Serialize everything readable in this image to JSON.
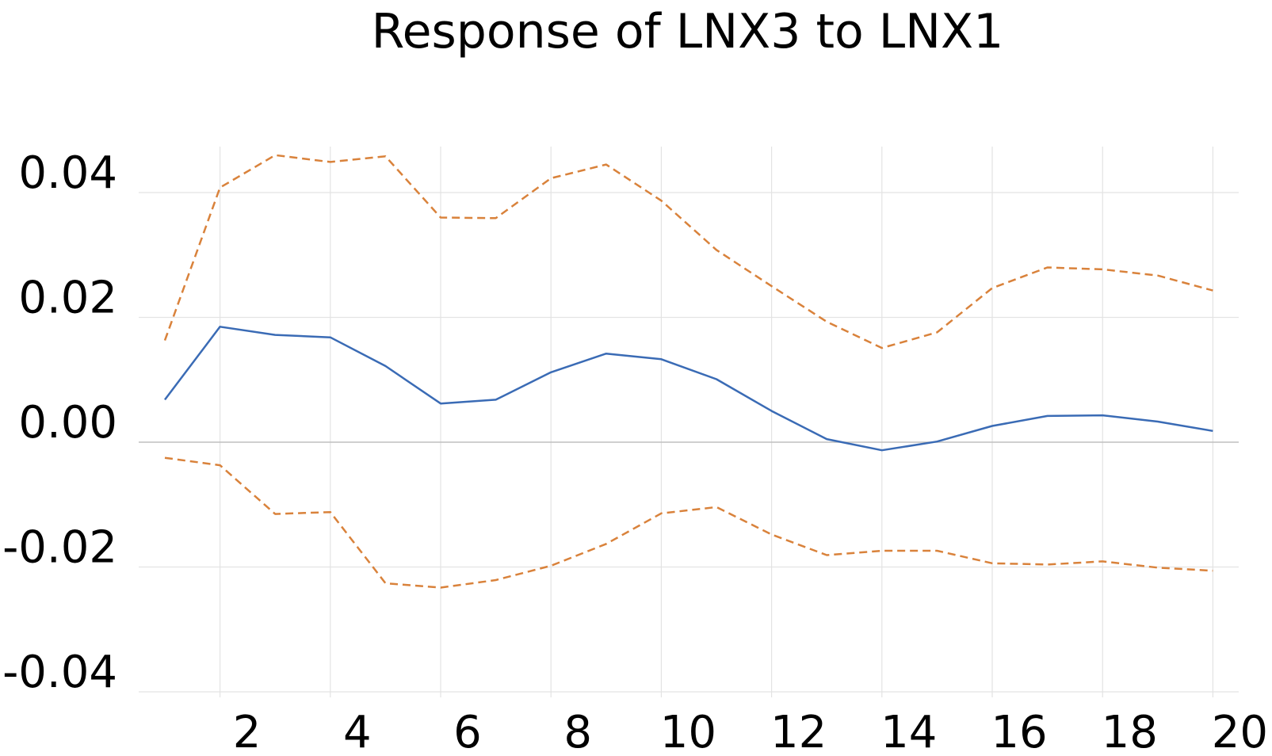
{
  "chart_data": {
    "type": "line",
    "title": "Response of LNX3 to LNX1",
    "x": [
      1,
      2,
      3,
      4,
      5,
      6,
      7,
      8,
      9,
      10,
      11,
      12,
      13,
      14,
      15,
      16,
      17,
      18,
      19,
      20
    ],
    "xticks": [
      2,
      4,
      6,
      8,
      10,
      12,
      14,
      16,
      18,
      20
    ],
    "yticks": [
      "0.04",
      "0.02",
      "0.00",
      "-0.02",
      "-0.04"
    ],
    "yticks_values": [
      0.04,
      0.02,
      0.0,
      -0.02,
      -0.04
    ],
    "ylim": [
      -0.04,
      0.045
    ],
    "xlim": [
      0,
      20.5
    ],
    "grid": true,
    "legend": "none",
    "series": [
      {
        "role": "response",
        "color": "#3a6bb5",
        "style": "solid",
        "values": [
          0.0068,
          0.0185,
          0.0172,
          0.0168,
          0.0122,
          0.0062,
          0.0068,
          0.0112,
          0.0142,
          0.0133,
          0.0101,
          0.005,
          0.0005,
          -0.0013,
          0.0001,
          0.0026,
          0.0042,
          0.0043,
          0.0033,
          0.0018
        ]
      },
      {
        "role": "upper-band",
        "color": "#d9823b",
        "style": "dashed",
        "values": [
          0.0163,
          0.0408,
          0.046,
          0.0449,
          0.0458,
          0.036,
          0.0359,
          0.0423,
          0.0445,
          0.0387,
          0.0308,
          0.025,
          0.0193,
          0.0151,
          0.0176,
          0.0247,
          0.028,
          0.0277,
          0.0267,
          0.0243
        ]
      },
      {
        "role": "lower-band",
        "color": "#d9823b",
        "style": "dashed",
        "values": [
          -0.0025,
          -0.0037,
          -0.0115,
          -0.0112,
          -0.0226,
          -0.0233,
          -0.0221,
          -0.0198,
          -0.0163,
          -0.0114,
          -0.0104,
          -0.0148,
          -0.0181,
          -0.0174,
          -0.0174,
          -0.0194,
          -0.0196,
          -0.0191,
          -0.0201,
          -0.0206
        ]
      }
    ]
  }
}
